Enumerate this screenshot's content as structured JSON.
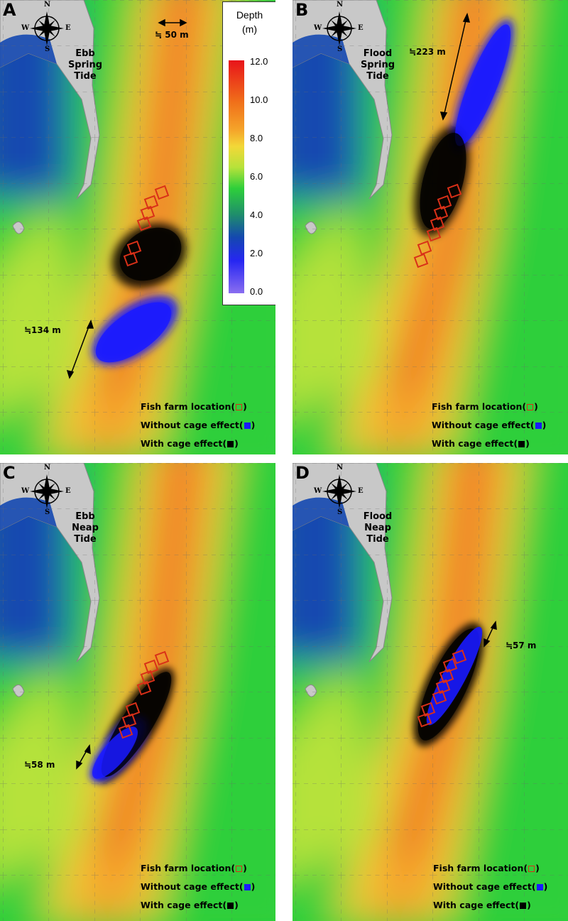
{
  "figure": {
    "colorbar": {
      "title_line1": "Depth",
      "title_line2": "(m)",
      "ticks": [
        "12.0",
        "10.0",
        "8.0",
        "6.0",
        "4.0",
        "2.0",
        "0.0"
      ],
      "range_m": [
        0,
        12
      ],
      "colors": [
        "#e8141a",
        "#f0701a",
        "#f3d838",
        "#2ecf3a",
        "#1448b0",
        "#2626f2",
        "#8a6ef0"
      ]
    },
    "compass": {
      "n": "N",
      "s": "S",
      "e": "E",
      "w": "W"
    },
    "scale_label": "≒ 50 m",
    "legend": {
      "farm": "Fish farm location(",
      "without": "Without cage effect(",
      "with": "With cage effect(",
      "close": ")"
    },
    "colors": {
      "farm_outline": "#d93018",
      "without_cage": "#1a1aff",
      "with_cage": "#000000",
      "land": "#c8c8c8",
      "deep_water": "#1448b0"
    },
    "panels": [
      {
        "label": "A",
        "tide_line1": "Ebb",
        "tide_line2": "Spring",
        "tide_line3": "Tide",
        "distance": "≒134 m"
      },
      {
        "label": "B",
        "tide_line1": "Flood",
        "tide_line2": "Spring",
        "tide_line3": "Tide",
        "distance": "≒223 m"
      },
      {
        "label": "C",
        "tide_line1": "Ebb",
        "tide_line2": "Neap",
        "tide_line3": "Tide",
        "distance": "≒58 m"
      },
      {
        "label": "D",
        "tide_line1": "Flood",
        "tide_line2": "Neap",
        "tide_line3": "Tide",
        "distance": "≒57 m"
      }
    ]
  }
}
